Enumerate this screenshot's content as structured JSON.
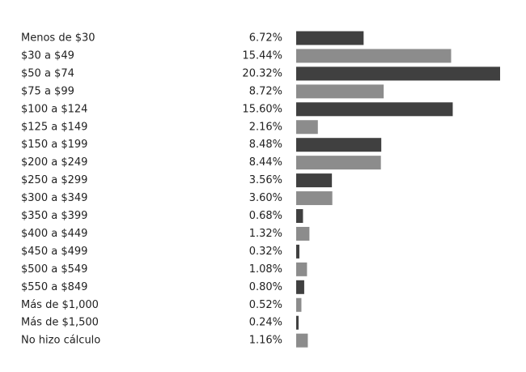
{
  "chart_data": {
    "type": "bar",
    "orientation": "horizontal",
    "title": "",
    "xlabel": "",
    "ylabel": "",
    "categories": [
      "Menos de $30",
      "$30 a $49",
      "$50 a $74",
      "$75 a $99",
      "$100 a $124",
      "$125 a $149",
      "$150 a $199",
      "$200 a $249",
      "$250 a $299",
      "$300 a $349",
      "$350 a $399",
      "$400 a $449",
      "$450 a $499",
      "$500 a $549",
      "$550 a $849",
      "Más de $1,000",
      "Más de $1,500",
      "No hizo cálculo"
    ],
    "values": [
      6.72,
      15.44,
      20.32,
      8.72,
      15.6,
      2.16,
      8.48,
      8.44,
      3.56,
      3.6,
      0.68,
      1.32,
      0.32,
      1.08,
      0.8,
      0.52,
      0.24,
      1.16
    ],
    "value_labels": [
      "6.72%",
      "15.44%",
      "20.32%",
      "8.72%",
      "15.60%",
      "2.16%",
      "8.48%",
      "8.44%",
      "3.56%",
      "3.60%",
      "0.68%",
      "1.32%",
      "0.32%",
      "1.08%",
      "0.80%",
      "0.52%",
      "0.24%",
      "1.16%"
    ],
    "unit": "%",
    "xlim": [
      0,
      20.32
    ],
    "grid": false,
    "legend": "none",
    "colors": [
      "#404040",
      "#8c8c8c"
    ]
  }
}
